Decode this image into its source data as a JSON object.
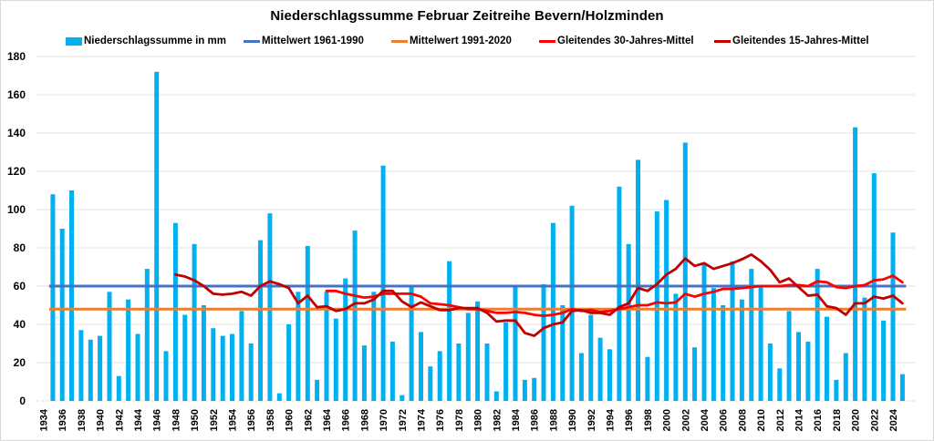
{
  "chart_data": {
    "type": "bar",
    "title": "Niederschlagssumme Februar Zeitreihe Bevern/Holzminden",
    "xlabel": "",
    "ylabel": "",
    "ylim": [
      0,
      180
    ],
    "yticks": [
      0,
      20,
      40,
      60,
      80,
      100,
      120,
      140,
      160,
      180
    ],
    "xlim": [
      1934,
      2025
    ],
    "xtick_labels": [
      "1934",
      "1936",
      "1938",
      "1940",
      "1942",
      "1944",
      "1946",
      "1948",
      "1950",
      "1952",
      "1954",
      "1956",
      "1958",
      "1960",
      "1962",
      "1964",
      "1966",
      "1968",
      "1970",
      "1972",
      "1974",
      "1976",
      "1978",
      "1980",
      "1982",
      "1984",
      "1986",
      "1988",
      "1990",
      "1992",
      "1994",
      "1996",
      "1998",
      "2000",
      "2002",
      "2004",
      "2006",
      "2008",
      "2010",
      "2012",
      "2014",
      "2016",
      "2018",
      "2020",
      "2022",
      "2024"
    ],
    "grid": true,
    "legend_position": "top",
    "series": [
      {
        "name": "Niederschlagssumme in mm",
        "type": "bar",
        "color": "#00B0F0",
        "start_year": 1935,
        "values": [
          108,
          90,
          110,
          37,
          32,
          34,
          57,
          13,
          53,
          35,
          69,
          172,
          26,
          93,
          45,
          82,
          50,
          38,
          34,
          35,
          47,
          30,
          84,
          98,
          4,
          40,
          57,
          81,
          11,
          57,
          43,
          64,
          89,
          29,
          57,
          123,
          31,
          3,
          60,
          36,
          18,
          26,
          73,
          30,
          46,
          52,
          30,
          5,
          41,
          60,
          11,
          12,
          61,
          93,
          50,
          102,
          25,
          45,
          33,
          27,
          112,
          82,
          126,
          23,
          99,
          105,
          56,
          135,
          28,
          72,
          59,
          50,
          73,
          53,
          69,
          60,
          30,
          17,
          47,
          36,
          31,
          69,
          44,
          11,
          25,
          143,
          54,
          119,
          42,
          88,
          14
        ]
      },
      {
        "name": "Mittelwert 1961-1990",
        "type": "hline",
        "color": "#4472C4",
        "value": 60
      },
      {
        "name": "Mittelwert 1991-2020",
        "type": "hline",
        "color": "#ED7D31",
        "value": 48
      },
      {
        "name": "Gleitendes 30-Jahres-Mittel",
        "type": "line",
        "color": "#FF0000",
        "start_year": 1964,
        "values": [
          57.5,
          57.5,
          56,
          55,
          54,
          54.5,
          56,
          56,
          56,
          56,
          54.5,
          51,
          50.5,
          50,
          49,
          48,
          48,
          47,
          46,
          46,
          46.5,
          46,
          45,
          44.5,
          45,
          46,
          48,
          47,
          47.5,
          46.5,
          47,
          48,
          49,
          50,
          50,
          51.5,
          51,
          51.5,
          56,
          54.5,
          56,
          57,
          58.5,
          58.5,
          59,
          59.5,
          60,
          60,
          60,
          60.5,
          60.5,
          60,
          62.5,
          62,
          59.5,
          59,
          60,
          60.5,
          63,
          63.5,
          65.5,
          62
        ]
      },
      {
        "name": "Gleitendes 15-Jahres-Mittel",
        "type": "line",
        "color": "#C00000",
        "start_year": 1948,
        "values": [
          66,
          65,
          63,
          60,
          56,
          55.5,
          56,
          57,
          55,
          60,
          62.5,
          61,
          59,
          51,
          55,
          49,
          49.5,
          47,
          48,
          51,
          51,
          53,
          57.5,
          57.5,
          52,
          49,
          51.5,
          49.5,
          47.5,
          47.5,
          48.5,
          48.5,
          48.5,
          46,
          41.5,
          42,
          42,
          35.5,
          34,
          38,
          40,
          41,
          47,
          47.5,
          46,
          46,
          45,
          49,
          51,
          59,
          57.5,
          61,
          66,
          69,
          74.5,
          70.5,
          72,
          69,
          70.5,
          72,
          74,
          76.5,
          73,
          68.5,
          62,
          64,
          59.5,
          55,
          55.5,
          49.5,
          48.5,
          45,
          51,
          51,
          54.5,
          53.5,
          55,
          51
        ]
      }
    ]
  }
}
